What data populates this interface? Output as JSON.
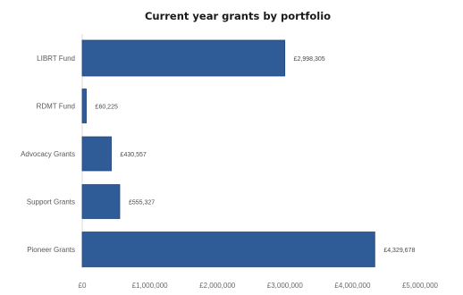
{
  "chart_data": {
    "type": "bar",
    "orientation": "horizontal",
    "title": "Current year grants by portfolio",
    "categories": [
      "LIBRT Fund",
      "RDMT Fund",
      "Advocacy Grants",
      "Support Grants",
      "Pioneer Grants"
    ],
    "values": [
      2998305,
      60225,
      430557,
      555327,
      4329678
    ],
    "data_labels": [
      "£2,998,305",
      "£60,225",
      "£430,557",
      "£555,327",
      "£4,329,678"
    ],
    "x_ticks": [
      "£0",
      "£1,000,000",
      "£2,000,000",
      "£3,000,000",
      "£4,000,000",
      "£5,000,000"
    ],
    "xlim": [
      0,
      5000000
    ],
    "xlabel": "",
    "ylabel": "",
    "grid": false,
    "legend": "none",
    "bar_color": "#2f5b97",
    "bar_edge_color": "#24487a"
  }
}
